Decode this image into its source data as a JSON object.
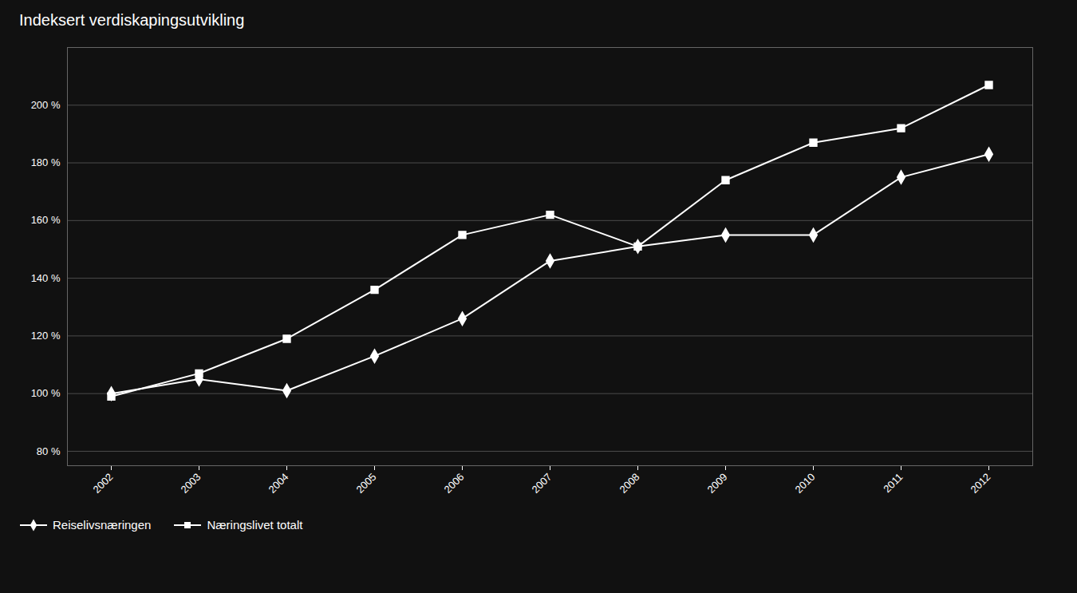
{
  "chart_data": {
    "type": "line",
    "title": "Indeksert verdiskapingsutvikling",
    "x": [
      2002,
      2003,
      2004,
      2005,
      2006,
      2007,
      2008,
      2009,
      2010,
      2011,
      2012
    ],
    "series": [
      {
        "name": "Reiselivsnæringen",
        "color": "#ffffff",
        "marker": "diamond",
        "values": [
          100,
          105,
          101,
          113,
          126,
          146,
          151,
          155,
          155,
          175,
          183
        ]
      },
      {
        "name": "Næringslivet totalt",
        "color": "#ffffff",
        "marker": "square",
        "values": [
          99,
          107,
          119,
          136,
          155,
          162,
          151,
          174,
          187,
          192,
          207
        ]
      }
    ],
    "xlim": [
      2001.5,
      2012.5
    ],
    "xticks": [
      2002,
      2003,
      2004,
      2005,
      2006,
      2007,
      2008,
      2009,
      2010,
      2011,
      2012
    ],
    "ylim": [
      75,
      220
    ],
    "yticks": [
      {
        "value": 80,
        "label": "80 %"
      },
      {
        "value": 100,
        "label": "100 %"
      },
      {
        "value": 120,
        "label": "120 %"
      },
      {
        "value": 140,
        "label": "140 %"
      },
      {
        "value": 160,
        "label": "160 %"
      },
      {
        "value": 180,
        "label": "180 %"
      },
      {
        "value": 200,
        "label": "200 %"
      }
    ],
    "grid": true,
    "legend": "lower left"
  }
}
